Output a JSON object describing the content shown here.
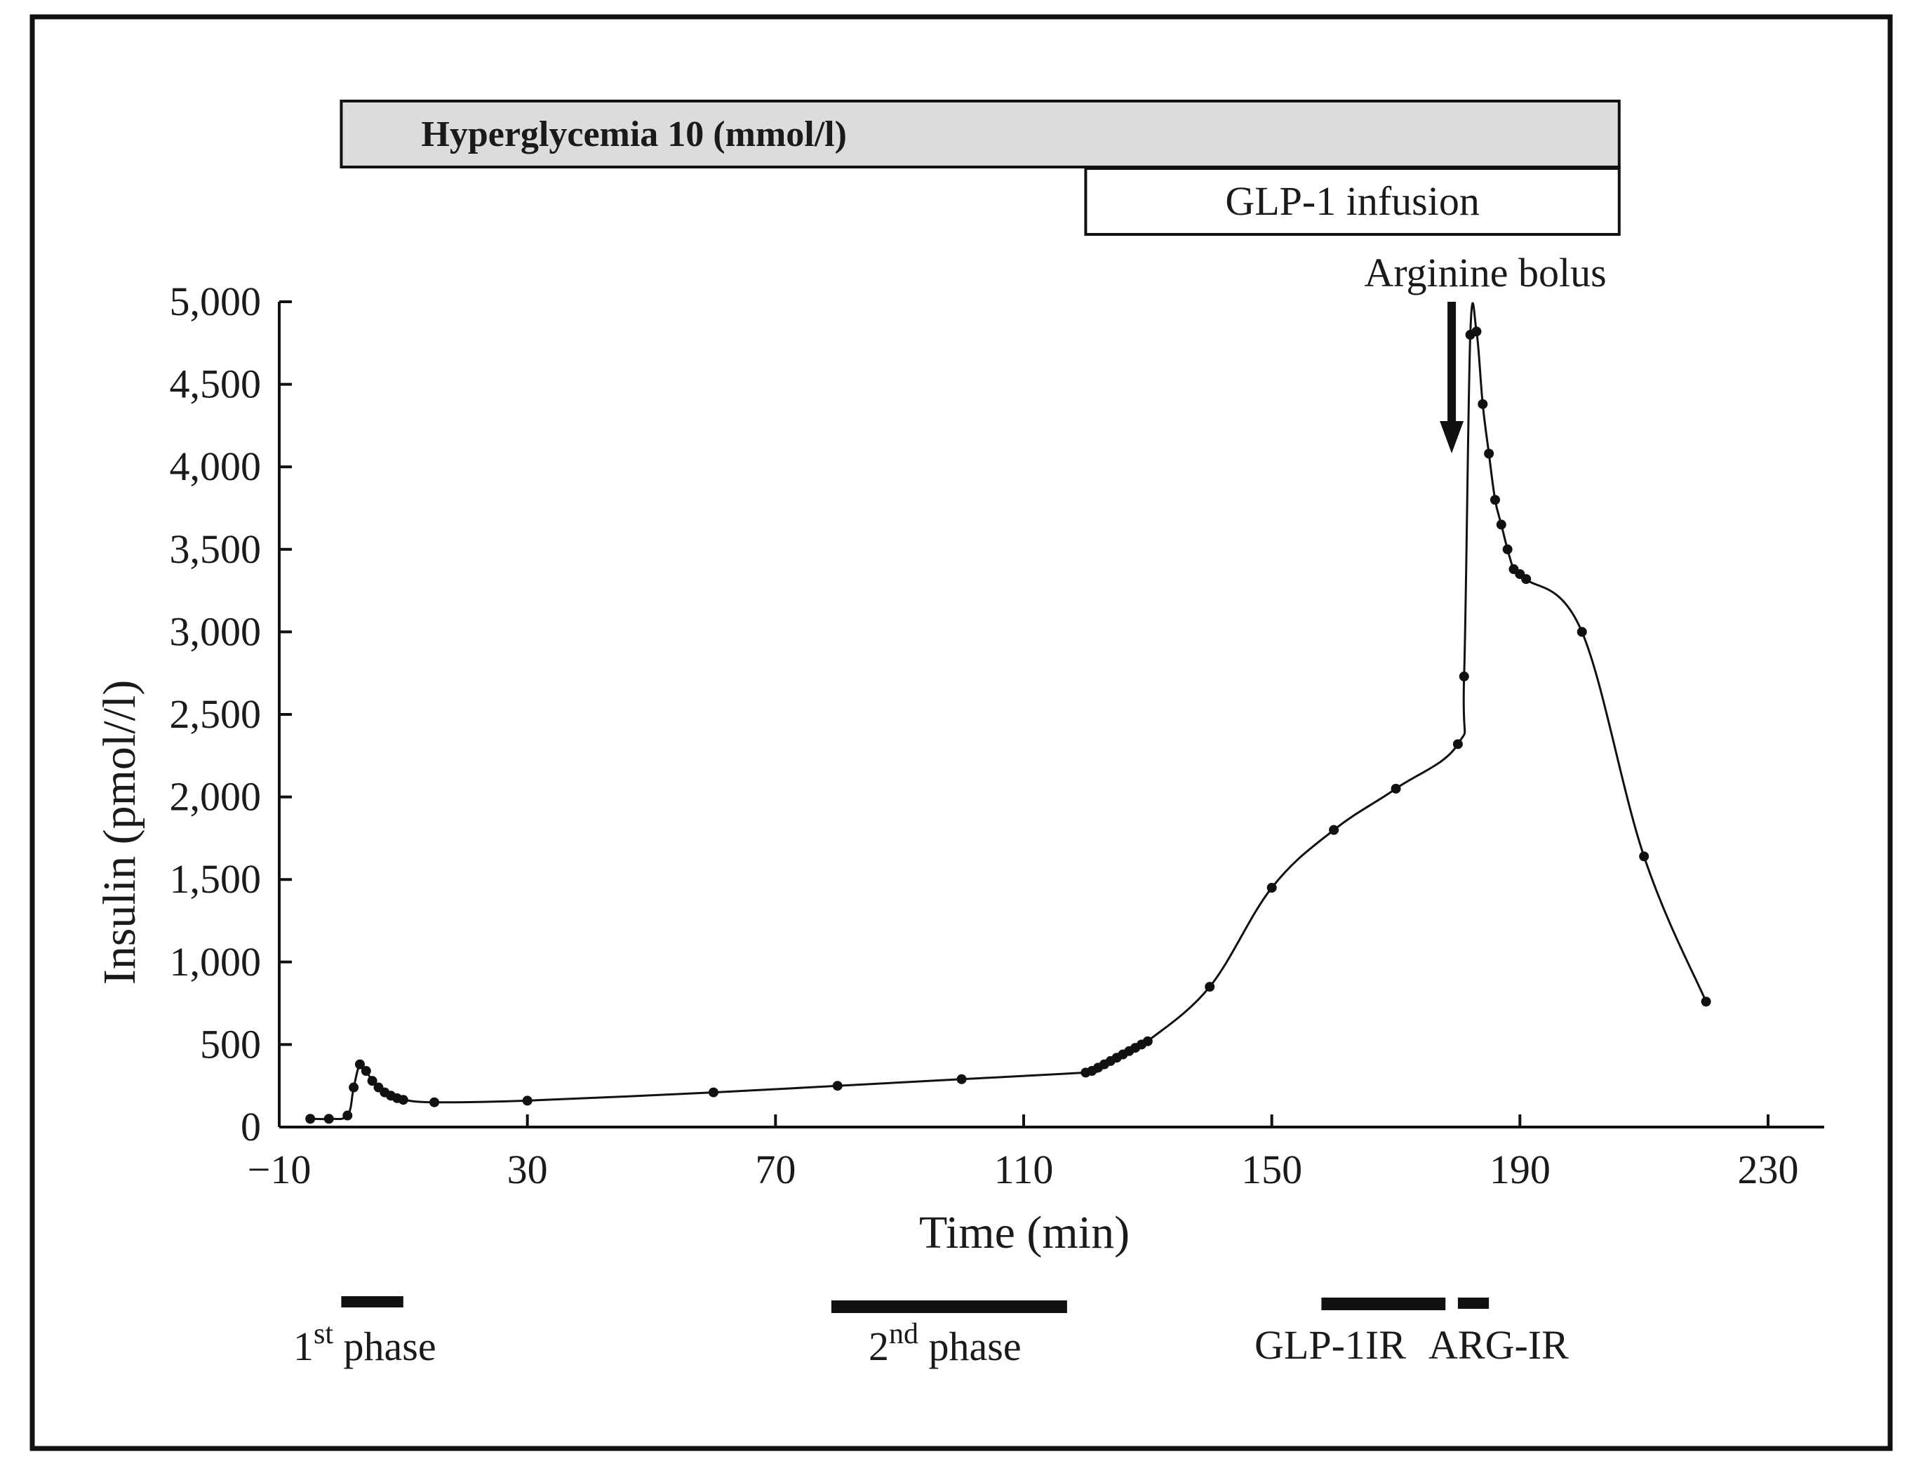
{
  "chart_data": {
    "type": "line",
    "title": "",
    "xlabel": "Time (min)",
    "ylabel": "Insulin (pmol//l)",
    "xlim": [
      -10,
      240
    ],
    "ylim": [
      0,
      5000
    ],
    "x_ticks": [
      -10,
      30,
      70,
      110,
      150,
      190,
      230
    ],
    "x_tick_labels": [
      "−10",
      "30",
      "70",
      "110",
      "150",
      "190",
      "230"
    ],
    "y_ticks": [
      0,
      500,
      1000,
      1500,
      2000,
      2500,
      3000,
      3500,
      4000,
      4500,
      5000
    ],
    "y_tick_labels": [
      "0",
      "500",
      "1,000",
      "1,500",
      "2,000",
      "2,500",
      "3,000",
      "3,500",
      "4,000",
      "4,500",
      "5,000"
    ],
    "series": [
      {
        "name": "Insulin",
        "x": [
          -5,
          -2,
          1,
          2,
          3,
          4,
          5,
          6,
          7,
          8,
          9,
          10,
          15,
          30,
          60,
          80,
          100,
          120,
          121,
          122,
          123,
          124,
          125,
          126,
          127,
          128,
          129,
          130,
          140,
          150,
          160,
          170,
          180,
          181,
          182,
          183,
          184,
          185,
          186,
          187,
          188,
          189,
          190,
          191,
          200,
          210,
          220
        ],
        "y": [
          50,
          50,
          70,
          240,
          380,
          340,
          280,
          240,
          210,
          190,
          175,
          165,
          150,
          160,
          210,
          250,
          290,
          330,
          340,
          360,
          380,
          400,
          420,
          440,
          460,
          480,
          500,
          520,
          850,
          1450,
          1800,
          2050,
          2320,
          2730,
          4800,
          4820,
          4380,
          4080,
          3800,
          3650,
          3500,
          3380,
          3350,
          3320,
          3000,
          1640,
          760
        ]
      }
    ],
    "bands": [
      {
        "label": "Hyperglycemia 10 (mmol/l)",
        "start": 0,
        "end": 206,
        "fill": "#dcdcdc"
      },
      {
        "label": "GLP-1 infusion",
        "start": 120,
        "end": 206,
        "fill": "#ffffff"
      }
    ],
    "annotations": [
      {
        "label": "Arginine bolus",
        "x": 179,
        "arrow_from_y": 5000,
        "arrow_to_y": 4000
      }
    ],
    "phase_bars": [
      {
        "start": 0,
        "end": 10,
        "label_base": "1",
        "label_sup": "st",
        "label_rest": " phase"
      },
      {
        "start": 79,
        "end": 117,
        "label_base": "2",
        "label_sup": "nd",
        "label_rest": " phase"
      },
      {
        "start": 158,
        "end": 178,
        "label_base": "GLP-1IR",
        "label_sup": "",
        "label_rest": ""
      },
      {
        "start": 180,
        "end": 185,
        "label_base": "ARG-IR",
        "label_sup": "",
        "label_rest": ""
      }
    ],
    "colors": {
      "line": "#111111",
      "marker": "#111111",
      "axis": "#111111",
      "frame": "#111111"
    }
  }
}
